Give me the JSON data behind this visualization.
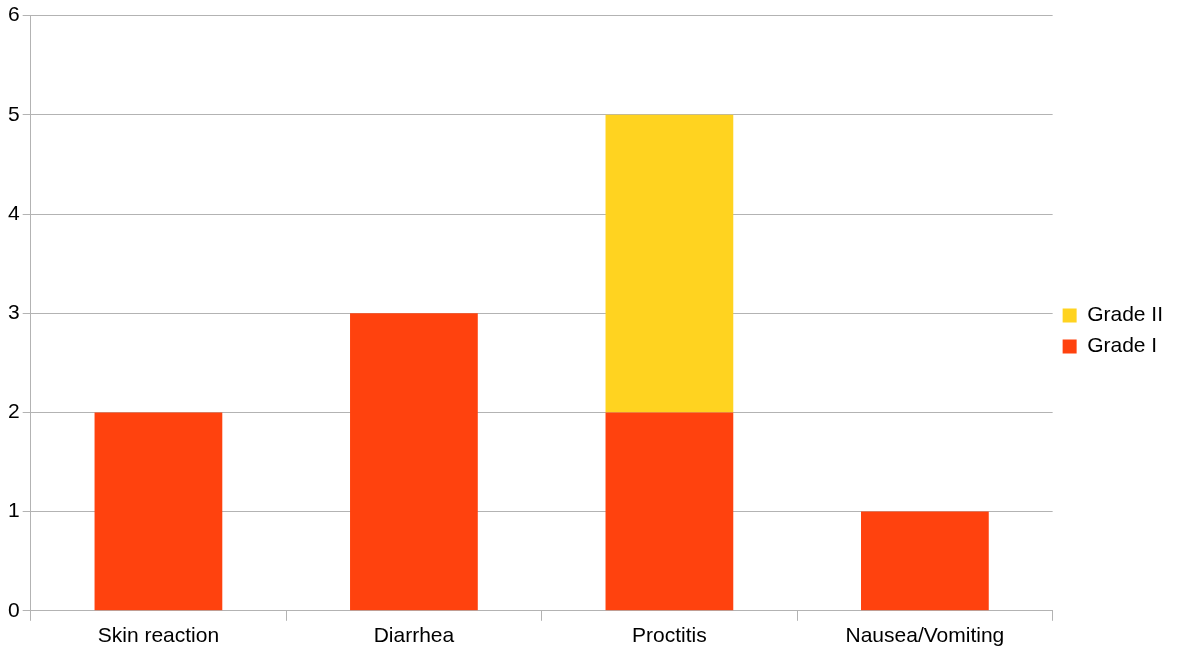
{
  "chart_data": {
    "type": "bar",
    "stacked": true,
    "categories": [
      "Skin reaction",
      "Diarrhea",
      "Proctitis",
      "Nausea/Vomiting"
    ],
    "series": [
      {
        "name": "Grade I",
        "color": "#ff420e",
        "values": [
          2,
          3,
          2,
          1
        ]
      },
      {
        "name": "Grade II",
        "color": "#ffd320",
        "values": [
          null,
          null,
          3,
          null
        ]
      }
    ],
    "ylim": [
      0,
      6
    ],
    "yticks": [
      0,
      1,
      2,
      3,
      4,
      5,
      6
    ],
    "grid": "y",
    "legend": "right"
  }
}
